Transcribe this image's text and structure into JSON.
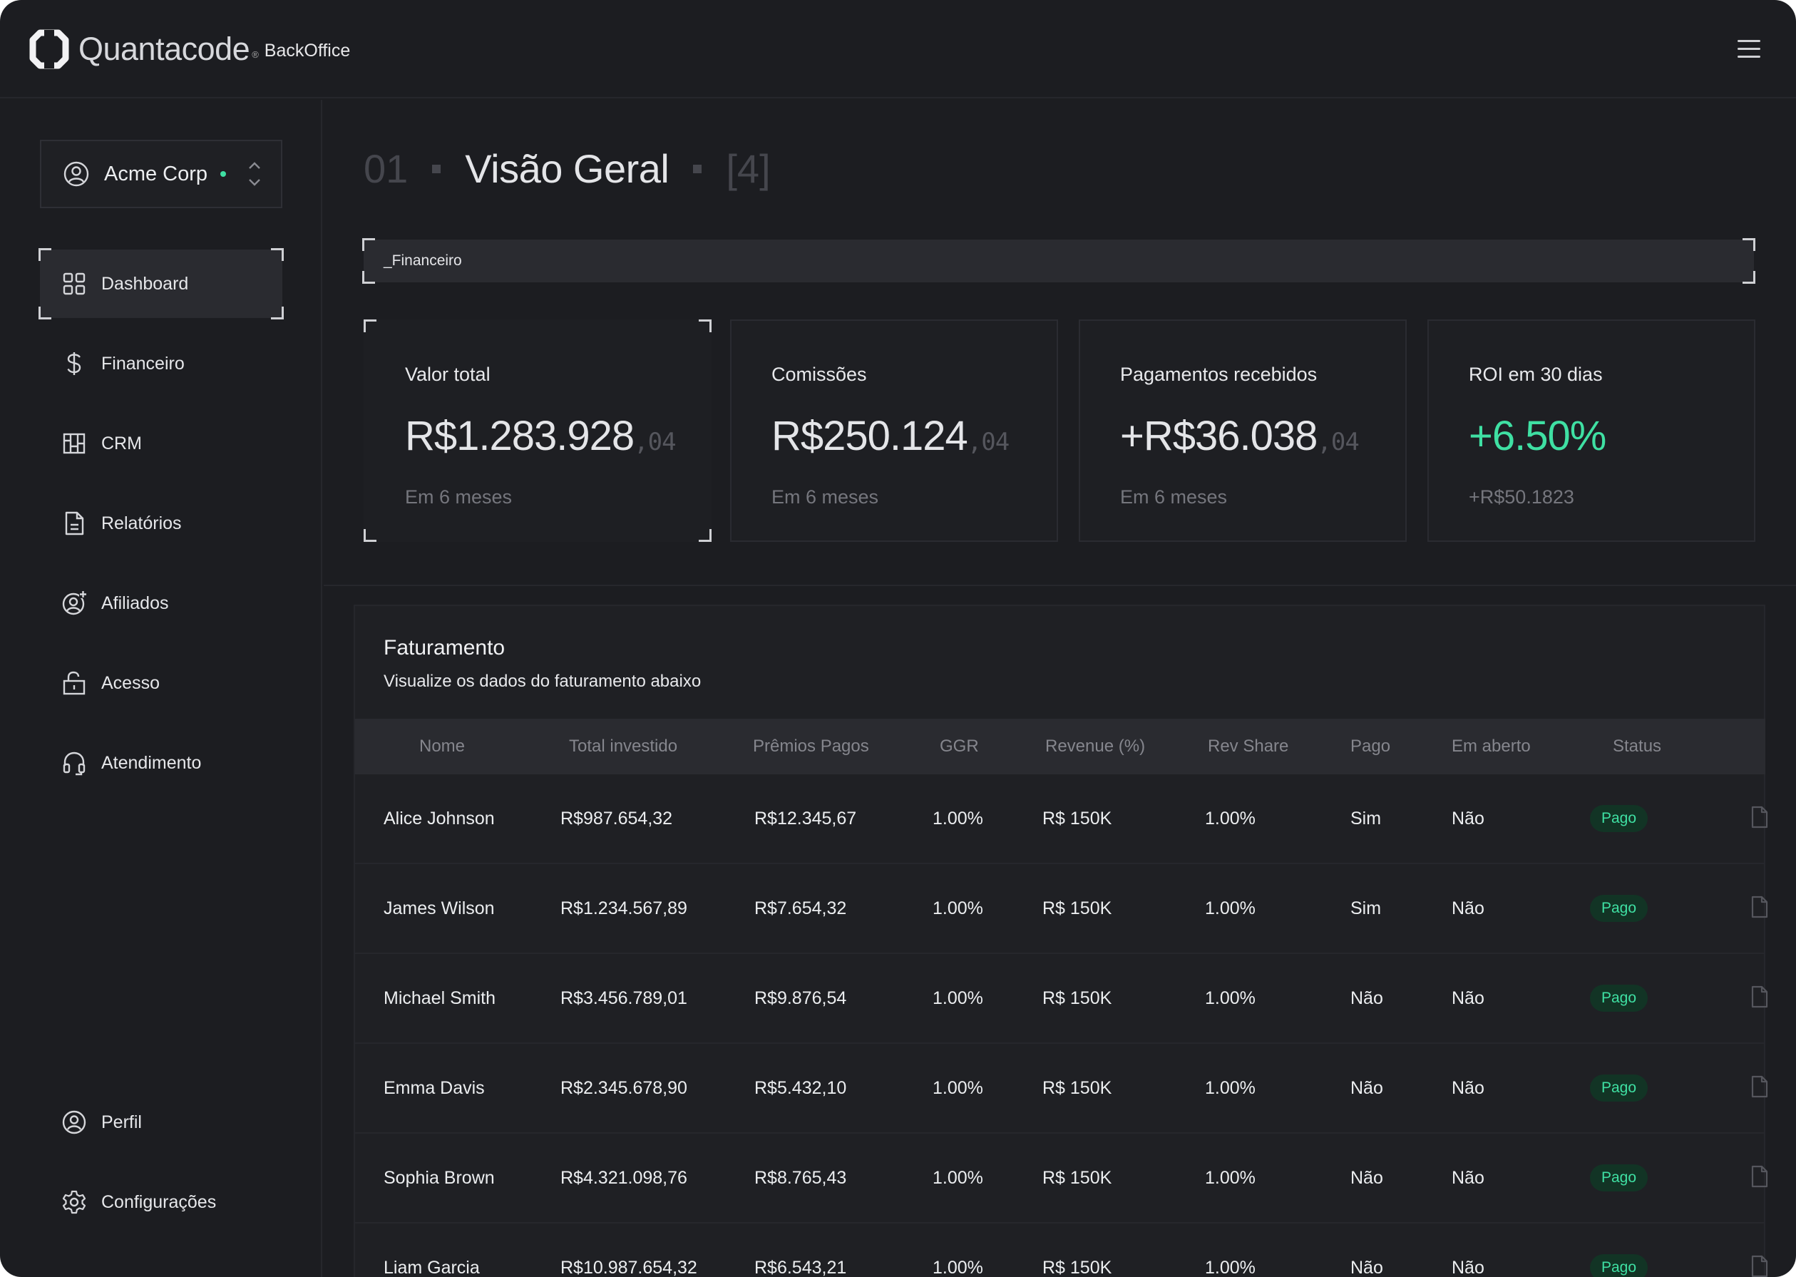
{
  "brand": {
    "name": "Quantacode",
    "reg": "®",
    "product": "BackOffice"
  },
  "org": {
    "name": "Acme Corp"
  },
  "nav": {
    "items": [
      {
        "label": "Dashboard"
      },
      {
        "label": "Financeiro"
      },
      {
        "label": "CRM"
      },
      {
        "label": "Relatórios"
      },
      {
        "label": "Afiliados"
      },
      {
        "label": "Acesso"
      },
      {
        "label": "Atendimento"
      }
    ],
    "bottom": [
      {
        "label": "Perfil"
      },
      {
        "label": "Configurações"
      }
    ]
  },
  "page": {
    "number": "01",
    "title": "Visão Geral",
    "count": "[4]"
  },
  "section": {
    "label": "_Financeiro"
  },
  "kpis": [
    {
      "label": "Valor total",
      "value": "R$1.283.928",
      "cents": ",04",
      "sub": "Em 6 meses"
    },
    {
      "label": "Comissões",
      "value": "R$250.124",
      "cents": ",04",
      "sub": "Em 6 meses"
    },
    {
      "label": "Pagamentos recebidos",
      "value": "+R$36.038",
      "cents": ",04",
      "sub": "Em 6 meses"
    },
    {
      "label": "ROI em 30 dias",
      "value": "+6.50%",
      "cents": "",
      "sub": "+R$50.1823"
    }
  ],
  "billing": {
    "title": "Faturamento",
    "subtitle": "Visualize os dados do faturamento abaixo",
    "columns": [
      "Nome",
      "Total investido",
      "Prêmios Pagos",
      "GGR",
      "Revenue (%)",
      "Rev Share",
      "Pago",
      "Em aberto",
      "Status"
    ],
    "rows": [
      [
        "Alice Johnson",
        "R$987.654,32",
        "R$12.345,67",
        "1.00%",
        "R$ 150K",
        "1.00%",
        "Sim",
        "Não",
        "Pago"
      ],
      [
        "James Wilson",
        "R$1.234.567,89",
        "R$7.654,32",
        "1.00%",
        "R$ 150K",
        "1.00%",
        "Sim",
        "Não",
        "Pago"
      ],
      [
        "Michael Smith",
        "R$3.456.789,01",
        "R$9.876,54",
        "1.00%",
        "R$ 150K",
        "1.00%",
        "Não",
        "Não",
        "Pago"
      ],
      [
        "Emma Davis",
        "R$2.345.678,90",
        "R$5.432,10",
        "1.00%",
        "R$ 150K",
        "1.00%",
        "Não",
        "Não",
        "Pago"
      ],
      [
        "Sophia Brown",
        "R$4.321.098,76",
        "R$8.765,43",
        "1.00%",
        "R$ 150K",
        "1.00%",
        "Não",
        "Não",
        "Pago"
      ],
      [
        "Liam Garcia",
        "R$10.987.654,32",
        "R$6.543,21",
        "1.00%",
        "R$ 150K",
        "1.00%",
        "Não",
        "Não",
        "Pago"
      ]
    ]
  },
  "colors": {
    "background": "#1c1d21",
    "accent": "#3fe0a3",
    "badge_bg": "#123425"
  }
}
